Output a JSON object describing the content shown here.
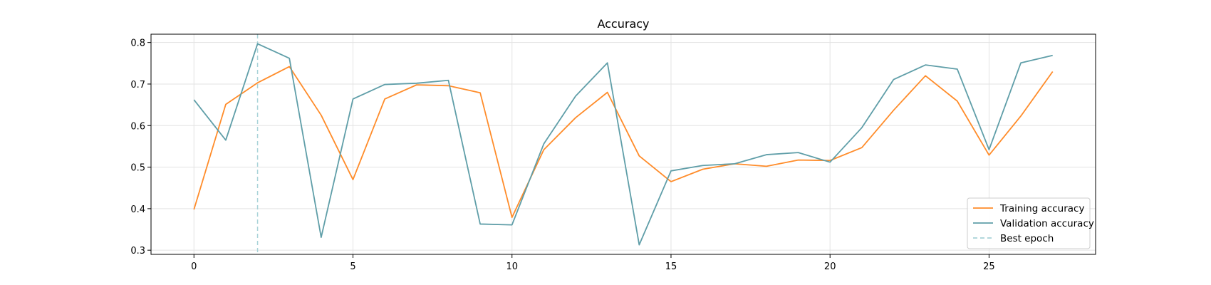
{
  "chart_data": {
    "type": "line",
    "title": "Accuracy",
    "xlabel": "",
    "ylabel": "",
    "xlim": [
      -1.35,
      28.35
    ],
    "ylim": [
      0.29,
      0.82
    ],
    "x_ticks": [
      0,
      5,
      10,
      15,
      20,
      25
    ],
    "y_ticks": [
      0.3,
      0.4,
      0.5,
      0.6,
      0.7,
      0.8
    ],
    "y_tick_labels": [
      "0.3",
      "0.4",
      "0.5",
      "0.6",
      "0.7",
      "0.8"
    ],
    "grid": true,
    "legend_position": "bottom-right",
    "x": [
      0,
      1,
      2,
      3,
      4,
      5,
      6,
      7,
      8,
      9,
      10,
      11,
      12,
      13,
      14,
      15,
      16,
      17,
      18,
      19,
      20,
      21,
      22,
      23,
      24,
      25,
      26,
      27
    ],
    "series": [
      {
        "name": "Training accuracy",
        "color": "#ff8c2a",
        "values": [
          0.398,
          0.651,
          0.703,
          0.742,
          0.625,
          0.47,
          0.664,
          0.698,
          0.696,
          0.679,
          0.379,
          0.542,
          0.619,
          0.68,
          0.527,
          0.465,
          0.495,
          0.508,
          0.502,
          0.517,
          0.516,
          0.547,
          0.637,
          0.72,
          0.659,
          0.529,
          0.623,
          0.73
        ]
      },
      {
        "name": "Validation accuracy",
        "color": "#5f9ea8",
        "values": [
          0.662,
          0.565,
          0.797,
          0.762,
          0.331,
          0.664,
          0.699,
          0.702,
          0.709,
          0.363,
          0.361,
          0.556,
          0.671,
          0.751,
          0.313,
          0.491,
          0.504,
          0.508,
          0.53,
          0.535,
          0.512,
          0.595,
          0.711,
          0.746,
          0.736,
          0.542,
          0.751,
          0.769
        ]
      }
    ],
    "markers": [
      {
        "name": "Best epoch",
        "x": 2,
        "style": "dashed",
        "color": "#a8d3d8"
      }
    ]
  }
}
